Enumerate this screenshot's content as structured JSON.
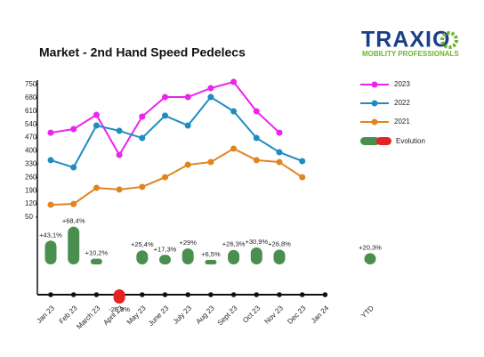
{
  "chart_data": {
    "type": "line",
    "title": "Market - 2nd Hand Speed Pedelecs",
    "categories": [
      "Jan 23",
      "Feb 23",
      "March 23",
      "April 23",
      "May 23",
      "June 23",
      "July 23",
      "Aug 23",
      "Sept 23",
      "Oct 23",
      "Nov 23",
      "Dec 23",
      "Jan 24"
    ],
    "ylim": [
      50,
      750
    ],
    "yticks": [
      50,
      120,
      190,
      260,
      330,
      400,
      470,
      540,
      610,
      680,
      750
    ],
    "grid": false,
    "legend": "right",
    "series": [
      {
        "name": "2023",
        "color": "#ee22ee",
        "values": [
          496,
          515,
          590,
          379,
          581,
          684,
          684,
          731,
          764,
          609,
          496,
          null,
          null
        ]
      },
      {
        "name": "2022",
        "color": "#1f8cc0",
        "values": [
          351,
          313,
          534,
          506,
          468,
          586,
          534,
          684,
          609,
          468,
          393,
          346,
          null
        ]
      },
      {
        "name": "2021",
        "color": "#e0841f",
        "values": [
          116,
          120,
          205,
          196,
          210,
          261,
          327,
          341,
          412,
          351,
          341,
          261,
          null
        ]
      }
    ],
    "evolution": {
      "name": "Evolution",
      "positive_color": "#4a8f50",
      "negative_color": "#e32222",
      "values": [
        43.1,
        68.4,
        10.2,
        -25.9,
        25.4,
        17.3,
        29,
        6.5,
        26.3,
        30.9,
        26.8,
        null,
        null
      ],
      "value_labels": [
        "+43,1%",
        "+68,4%",
        "+10,2%",
        "-25,9%",
        "+25,4%",
        "+17,3%",
        "+29%",
        "+6,5%",
        "+26,3%",
        "+30,9%",
        "+26,8%",
        null,
        null
      ]
    },
    "ytd": {
      "category": "YTD",
      "value": 20.3,
      "value_label": "+20,3%"
    }
  },
  "logo": {
    "name": "TRAXIO",
    "tagline": "MOBILITY PROFESSIONALS"
  }
}
